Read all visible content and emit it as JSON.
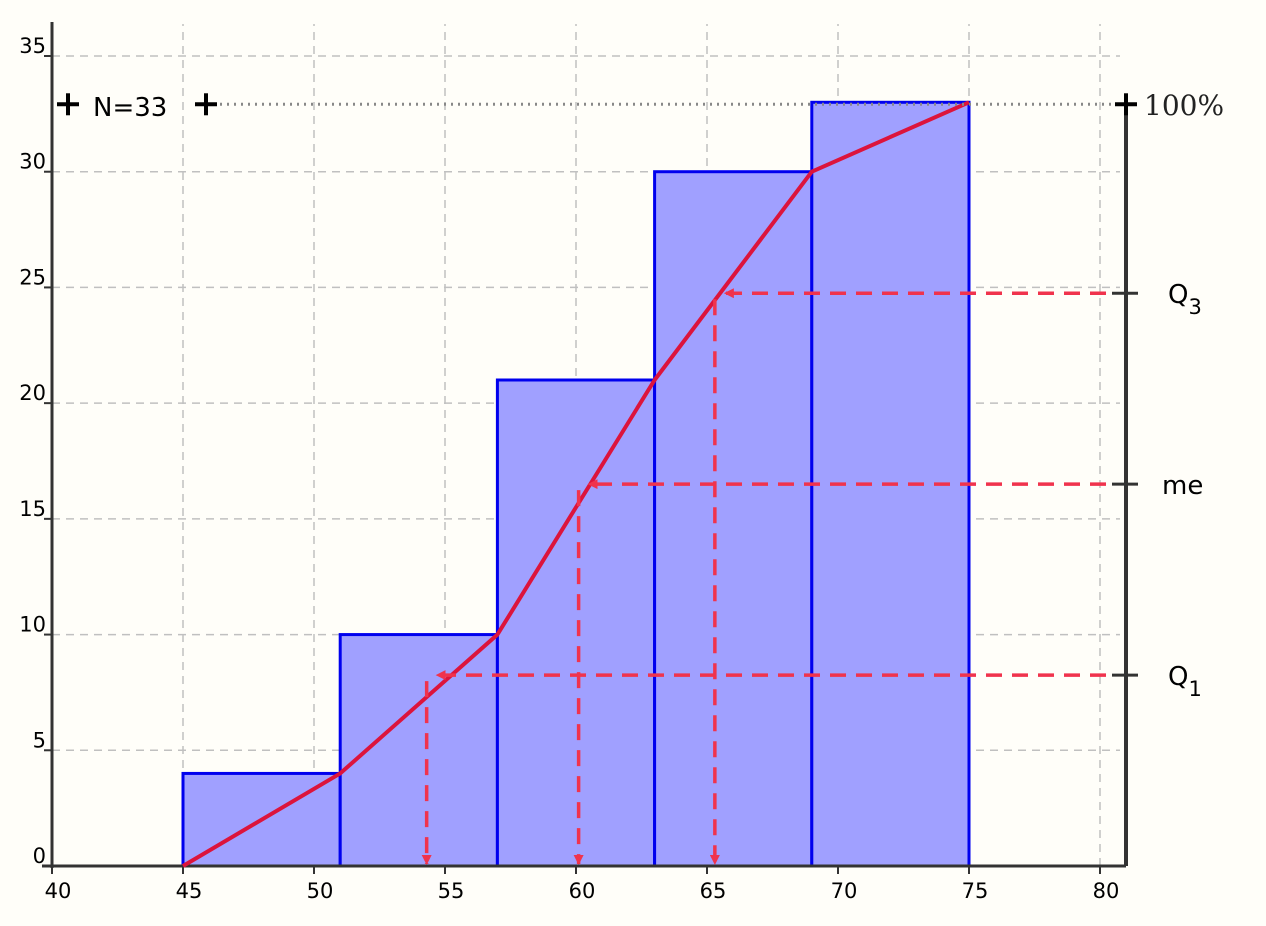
{
  "chart_data": {
    "type": "bar",
    "title": "",
    "xlabel": "",
    "ylabel": "",
    "xlim": [
      40,
      80
    ],
    "ylim": [
      0,
      36
    ],
    "x_ticks": [
      "40",
      "45",
      "50",
      "55",
      "60",
      "65",
      "70",
      "75",
      "80"
    ],
    "y_ticks": [
      "0",
      "5",
      "10",
      "15",
      "20",
      "25",
      "30",
      "35"
    ],
    "grid": true,
    "bins": [
      {
        "from": 45,
        "to": 51,
        "count": 4
      },
      {
        "from": 51,
        "to": 57,
        "count": 10
      },
      {
        "from": 57,
        "to": 63,
        "count": 21
      },
      {
        "from": 63,
        "to": 69,
        "count": 30
      },
      {
        "from": 69,
        "to": 75,
        "count": 33
      }
    ],
    "cumulative_polygon": {
      "x": [
        45,
        51,
        57,
        63,
        69,
        75
      ],
      "y": [
        0,
        4,
        10,
        21,
        30,
        33
      ]
    },
    "total": {
      "label": "N=33",
      "value": 33,
      "percent_label": "100%"
    },
    "quantiles": [
      {
        "name": "Q1",
        "main": "Q",
        "sub": "1",
        "y": 8.25,
        "x": 54.3
      },
      {
        "name": "me",
        "main": "me",
        "sub": "",
        "y": 16.5,
        "x": 60.1
      },
      {
        "name": "Q3",
        "main": "Q",
        "sub": "3",
        "y": 24.75,
        "x": 65.3
      }
    ],
    "colors": {
      "bar_fill": "#a0a0ff",
      "bar_stroke": "#0000ee",
      "polygon": "#dc143c",
      "guides": "#f0334d",
      "grid": "#c0c0c0",
      "axis": "#333333"
    }
  }
}
